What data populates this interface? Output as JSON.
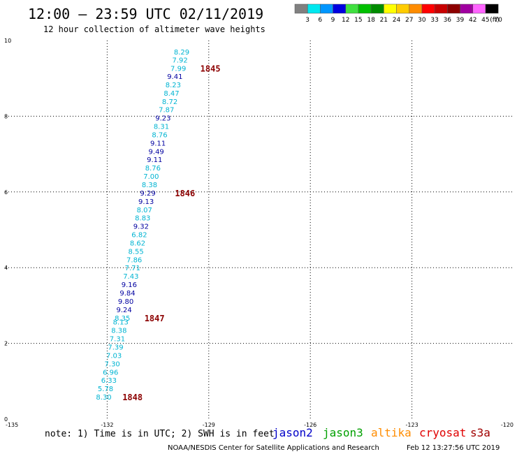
{
  "title": "12:00 – 23:59 UTC 02/11/2019",
  "subtitle": "12 hour collection of altimeter wave heights",
  "legend": {
    "unit": "(ft)",
    "bins": [
      {
        "label": "3",
        "color": "#808080"
      },
      {
        "label": "6",
        "color": "#00e8f0"
      },
      {
        "label": "9",
        "color": "#0096ff"
      },
      {
        "label": "12",
        "color": "#0000e0"
      },
      {
        "label": "15",
        "color": "#40e040"
      },
      {
        "label": "18",
        "color": "#00c000"
      },
      {
        "label": "21",
        "color": "#008c00"
      },
      {
        "label": "24",
        "color": "#ffff00"
      },
      {
        "label": "27",
        "color": "#ffcc00"
      },
      {
        "label": "30",
        "color": "#ff8c00"
      },
      {
        "label": "33",
        "color": "#ff0000"
      },
      {
        "label": "36",
        "color": "#c80000"
      },
      {
        "label": "39",
        "color": "#8c0000"
      },
      {
        "label": "42",
        "color": "#a000a0"
      },
      {
        "label": "45",
        "color": "#ff64ff"
      },
      {
        "label": "70",
        "color": "#000000"
      }
    ]
  },
  "note": "note:  1) Time is in UTC;  2) SWH is in feet",
  "satellites": [
    {
      "name": "jason2",
      "color": "#0000c8"
    },
    {
      "name": "jason3",
      "color": "#00a000"
    },
    {
      "name": "altika",
      "color": "#ff8c00"
    },
    {
      "name": "cryosat",
      "color": "#e00000"
    },
    {
      "name": "s3a",
      "color": "#a00000"
    }
  ],
  "footer_left": "NOAA/NESDIS Center for Satellite Applications and Research",
  "footer_right": "Feb 12 13:27:56 UTC 2019",
  "chart_data": {
    "type": "scatter",
    "xlim": [
      -135,
      -120
    ],
    "ylim": [
      0,
      10
    ],
    "x_ticks": [
      "-135",
      "-132",
      "-129",
      "-126",
      "-123",
      "-120"
    ],
    "y_ticks": [
      "0",
      "2",
      "4",
      "6",
      "8",
      "10"
    ],
    "grid": "dotted",
    "colors": {
      "cyan": "#00b4d2",
      "blue": "#0000a0",
      "time": "#8c0000"
    },
    "points": [
      {
        "x": -129.8,
        "y": 9.7,
        "label": "8.29",
        "color": "cyan"
      },
      {
        "x": -129.85,
        "y": 9.48,
        "label": "7.92",
        "color": "cyan"
      },
      {
        "x": -129.9,
        "y": 9.26,
        "label": "7.99",
        "color": "cyan"
      },
      {
        "x": -130.0,
        "y": 9.05,
        "label": "9.41",
        "color": "blue"
      },
      {
        "x": -130.05,
        "y": 8.83,
        "label": "8.23",
        "color": "cyan"
      },
      {
        "x": -130.1,
        "y": 8.61,
        "label": "8.47",
        "color": "cyan"
      },
      {
        "x": -130.15,
        "y": 8.39,
        "label": "8.72",
        "color": "cyan"
      },
      {
        "x": -130.25,
        "y": 8.17,
        "label": "7.87",
        "color": "cyan"
      },
      {
        "x": -130.35,
        "y": 7.95,
        "label": "9.23",
        "color": "blue"
      },
      {
        "x": -130.4,
        "y": 7.73,
        "label": "8.31",
        "color": "cyan"
      },
      {
        "x": -130.45,
        "y": 7.51,
        "label": "8.76",
        "color": "cyan"
      },
      {
        "x": -130.5,
        "y": 7.29,
        "label": "9.11",
        "color": "blue"
      },
      {
        "x": -130.55,
        "y": 7.07,
        "label": "9.49",
        "color": "blue"
      },
      {
        "x": -130.6,
        "y": 6.85,
        "label": "9.11",
        "color": "blue"
      },
      {
        "x": -130.65,
        "y": 6.63,
        "label": "8.76",
        "color": "cyan"
      },
      {
        "x": -130.7,
        "y": 6.41,
        "label": "7.00",
        "color": "cyan"
      },
      {
        "x": -130.75,
        "y": 6.19,
        "label": "8.38",
        "color": "cyan"
      },
      {
        "x": -130.8,
        "y": 5.97,
        "label": "9.29",
        "color": "blue"
      },
      {
        "x": -130.85,
        "y": 5.75,
        "label": "9.13",
        "color": "blue"
      },
      {
        "x": -130.9,
        "y": 5.53,
        "label": "8.07",
        "color": "cyan"
      },
      {
        "x": -130.95,
        "y": 5.31,
        "label": "8.83",
        "color": "cyan"
      },
      {
        "x": -131.0,
        "y": 5.09,
        "label": "9.32",
        "color": "blue"
      },
      {
        "x": -131.05,
        "y": 4.87,
        "label": "6.82",
        "color": "cyan"
      },
      {
        "x": -131.1,
        "y": 4.65,
        "label": "8.62",
        "color": "cyan"
      },
      {
        "x": -131.15,
        "y": 4.43,
        "label": "8.55",
        "color": "cyan"
      },
      {
        "x": -131.2,
        "y": 4.21,
        "label": "7.86",
        "color": "cyan"
      },
      {
        "x": -131.25,
        "y": 3.99,
        "label": "7.71",
        "color": "cyan"
      },
      {
        "x": -131.3,
        "y": 3.77,
        "label": "7.43",
        "color": "cyan"
      },
      {
        "x": -131.35,
        "y": 3.55,
        "label": "9.16",
        "color": "blue"
      },
      {
        "x": -131.4,
        "y": 3.33,
        "label": "9.84",
        "color": "blue"
      },
      {
        "x": -131.45,
        "y": 3.11,
        "label": "9.80",
        "color": "blue"
      },
      {
        "x": -131.5,
        "y": 2.89,
        "label": "9.24",
        "color": "blue"
      },
      {
        "x": -131.55,
        "y": 2.67,
        "label": "8.35",
        "color": "cyan"
      },
      {
        "x": -131.6,
        "y": 2.56,
        "label": "8.13",
        "color": "cyan"
      },
      {
        "x": -131.65,
        "y": 2.34,
        "label": "8.38",
        "color": "cyan"
      },
      {
        "x": -131.7,
        "y": 2.12,
        "label": "7.31",
        "color": "cyan"
      },
      {
        "x": -131.75,
        "y": 1.9,
        "label": "7.39",
        "color": "cyan"
      },
      {
        "x": -131.8,
        "y": 1.68,
        "label": "7.03",
        "color": "cyan"
      },
      {
        "x": -131.85,
        "y": 1.46,
        "label": "7.30",
        "color": "cyan"
      },
      {
        "x": -131.9,
        "y": 1.24,
        "label": "6.96",
        "color": "cyan"
      },
      {
        "x": -131.95,
        "y": 1.02,
        "label": "6.33",
        "color": "cyan"
      },
      {
        "x": -132.05,
        "y": 0.8,
        "label": "5.78",
        "color": "cyan"
      },
      {
        "x": -132.1,
        "y": 0.58,
        "label": "8.30",
        "color": "cyan"
      }
    ],
    "time_labels": [
      {
        "x": -129.25,
        "y": 9.26,
        "label": "1845"
      },
      {
        "x": -130.0,
        "y": 5.97,
        "label": "1846"
      },
      {
        "x": -130.9,
        "y": 2.67,
        "label": "1847"
      },
      {
        "x": -131.55,
        "y": 0.58,
        "label": "1848"
      }
    ]
  }
}
